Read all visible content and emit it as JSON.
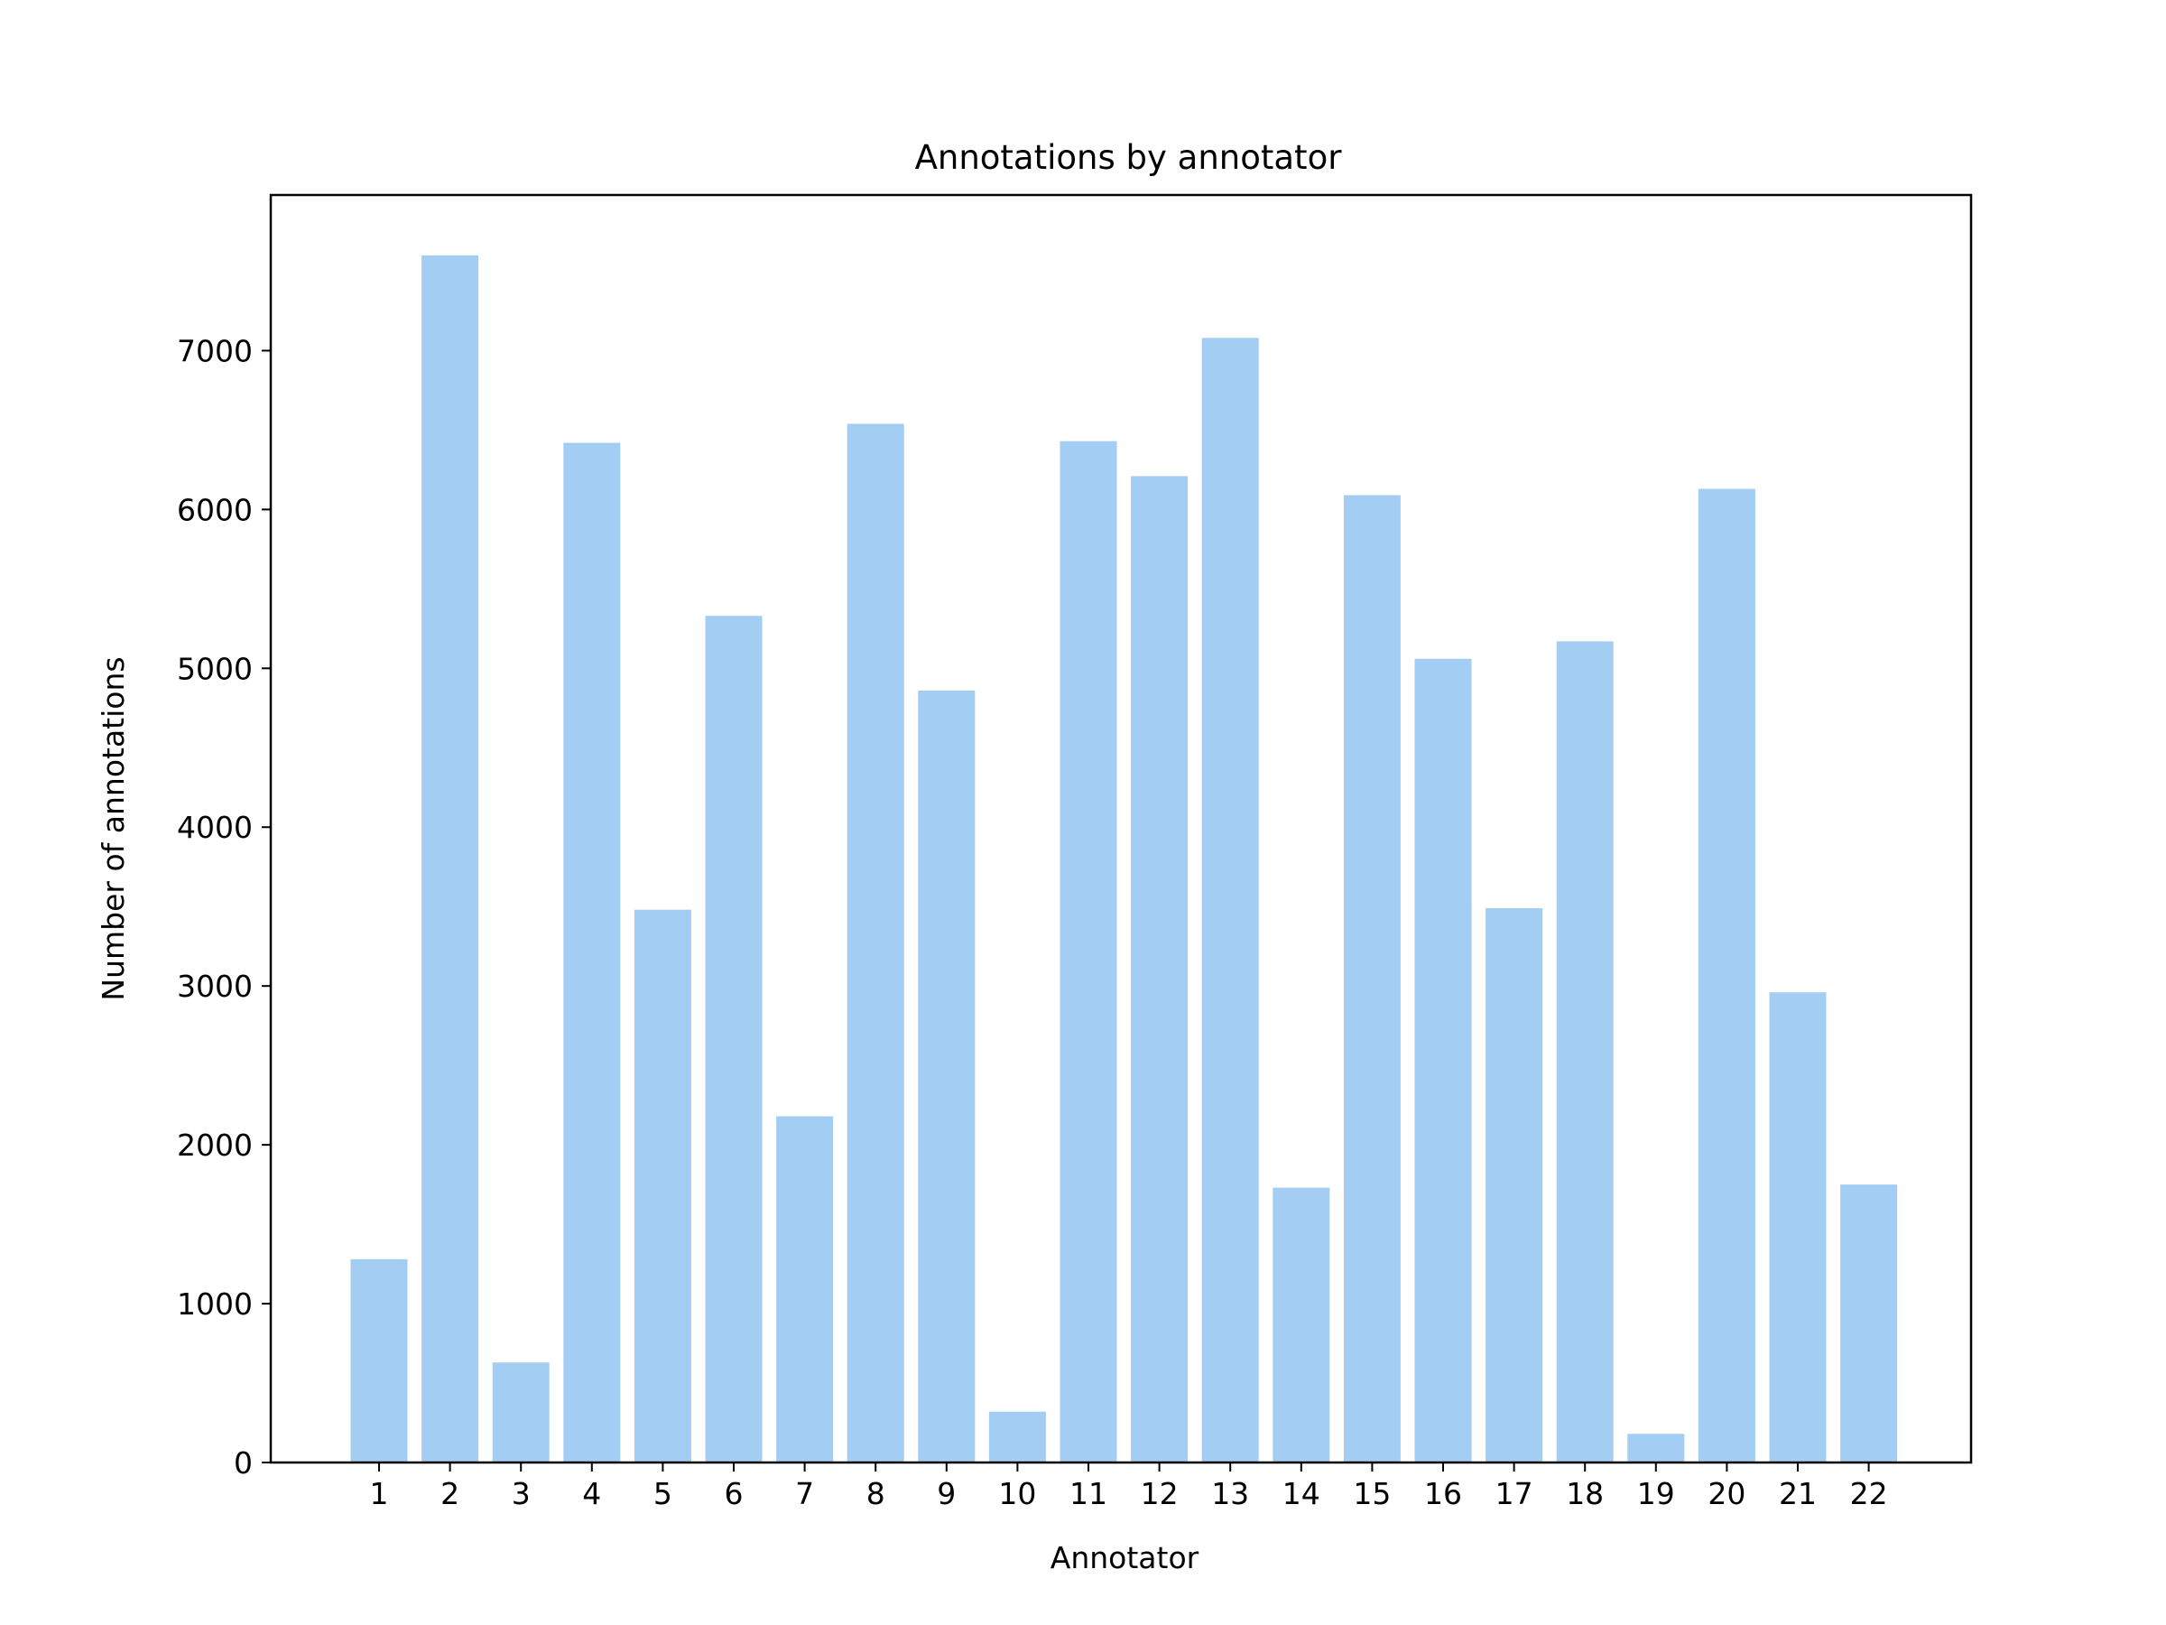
{
  "chart_data": {
    "type": "bar",
    "title": "Annotations by annotator",
    "xlabel": "Annotator",
    "ylabel": "Number of annotations",
    "categories": [
      "1",
      "2",
      "3",
      "4",
      "5",
      "6",
      "7",
      "8",
      "9",
      "10",
      "11",
      "12",
      "13",
      "14",
      "15",
      "16",
      "17",
      "18",
      "19",
      "20",
      "21",
      "22"
    ],
    "values": [
      1280,
      7600,
      630,
      6420,
      3480,
      5330,
      2180,
      6540,
      4860,
      320,
      6430,
      6210,
      7080,
      1730,
      6090,
      5060,
      3490,
      5170,
      180,
      6130,
      2960,
      1750
    ],
    "ylim": [
      0,
      7980
    ],
    "yticks": [
      0,
      1000,
      2000,
      3000,
      4000,
      5000,
      6000,
      7000
    ],
    "ytick_labels": [
      "0",
      "1000",
      "2000",
      "3000",
      "4000",
      "5000",
      "6000",
      "7000"
    ],
    "grid": false,
    "bar_color": "#a3cdf3"
  }
}
